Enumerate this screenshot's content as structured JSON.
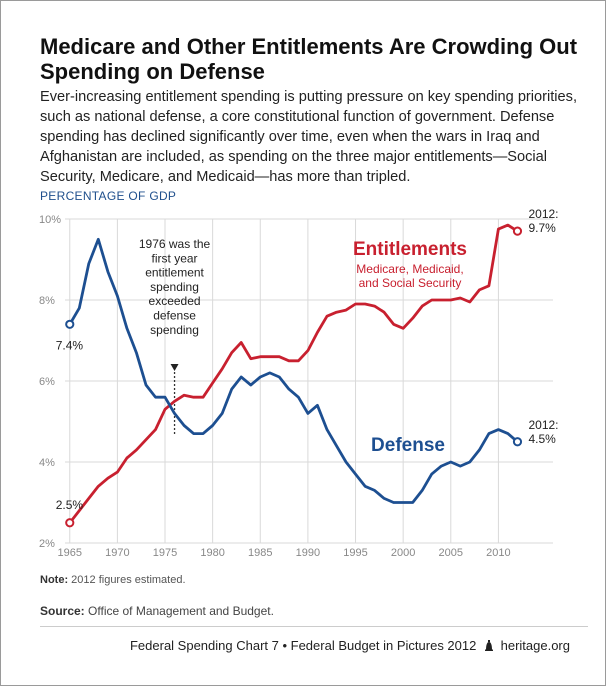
{
  "title": "Medicare and Other Entitlements Are Crowding Out Spending on Defense",
  "description": "Ever-increasing entitlement spending is putting pressure on key spending priorities, such as national defense, a core constitutional function of government. Defense spending has declined significantly over time, even when the wars in Iraq and Afghanistan are included, as spending on the three major entitlements—Social Security, Medicare, and Medicaid—has more than tripled.",
  "units_label": "PERCENTAGE OF GDP",
  "note": {
    "label": "Note:",
    "text": "2012 figures estimated."
  },
  "source": {
    "label": "Source:",
    "text": "Office of Management and Budget."
  },
  "footer": {
    "text": "Federal Spending Chart 7 • Federal Budget in Pictures 2012",
    "site": "heritage.org",
    "icon": "liberty-bell-icon"
  },
  "colors": {
    "entitlements": "#c8202f",
    "defense": "#1d4f91",
    "grid": "#d9d9d9",
    "tick_text": "#888888"
  },
  "chart_data": {
    "type": "line",
    "x_ticks": [
      1965,
      1970,
      1975,
      1980,
      1985,
      1990,
      1995,
      2000,
      2005,
      2010
    ],
    "y_ticks": [
      {
        "value": 2,
        "label": "2%"
      },
      {
        "value": 4,
        "label": "4%"
      },
      {
        "value": 6,
        "label": "6%"
      },
      {
        "value": 8,
        "label": "8%"
      },
      {
        "value": 10,
        "label": "10%"
      }
    ],
    "xlim": [
      1964.5,
      2013
    ],
    "ylim": [
      2,
      10
    ],
    "grid": true,
    "series": [
      {
        "name": "Entitlements",
        "subtitle": "Medicare, Medicaid, and Social Security",
        "color": "#c8202f",
        "x": [
          1965,
          1966,
          1967,
          1968,
          1969,
          1970,
          1971,
          1972,
          1973,
          1974,
          1975,
          1976,
          1977,
          1978,
          1979,
          1980,
          1981,
          1982,
          1983,
          1984,
          1985,
          1986,
          1987,
          1988,
          1989,
          1990,
          1991,
          1992,
          1993,
          1994,
          1995,
          1996,
          1997,
          1998,
          1999,
          2000,
          2001,
          2002,
          2003,
          2004,
          2005,
          2006,
          2007,
          2008,
          2009,
          2010,
          2011,
          2012
        ],
        "y": [
          2.5,
          2.8,
          3.1,
          3.4,
          3.6,
          3.75,
          4.1,
          4.3,
          4.55,
          4.8,
          5.3,
          5.5,
          5.65,
          5.6,
          5.6,
          5.95,
          6.3,
          6.7,
          6.95,
          6.55,
          6.6,
          6.6,
          6.6,
          6.5,
          6.5,
          6.75,
          7.2,
          7.6,
          7.7,
          7.75,
          7.9,
          7.9,
          7.85,
          7.7,
          7.4,
          7.3,
          7.55,
          7.85,
          8.0,
          8.0,
          8.0,
          8.05,
          7.95,
          8.25,
          8.35,
          9.75,
          9.85,
          9.7
        ]
      },
      {
        "name": "Defense",
        "color": "#1d4f91",
        "x": [
          1965,
          1966,
          1967,
          1968,
          1969,
          1970,
          1971,
          1972,
          1973,
          1974,
          1975,
          1976,
          1977,
          1978,
          1979,
          1980,
          1981,
          1982,
          1983,
          1984,
          1985,
          1986,
          1987,
          1988,
          1989,
          1990,
          1991,
          1992,
          1993,
          1994,
          1995,
          1996,
          1997,
          1998,
          1999,
          2000,
          2001,
          2002,
          2003,
          2004,
          2005,
          2006,
          2007,
          2008,
          2009,
          2010,
          2011,
          2012
        ],
        "y": [
          7.4,
          7.8,
          8.9,
          9.5,
          8.7,
          8.1,
          7.3,
          6.7,
          5.9,
          5.6,
          5.6,
          5.2,
          4.9,
          4.7,
          4.7,
          4.9,
          5.2,
          5.8,
          6.1,
          5.9,
          6.1,
          6.2,
          6.1,
          5.8,
          5.6,
          5.2,
          5.4,
          4.8,
          4.4,
          4.0,
          3.7,
          3.4,
          3.3,
          3.1,
          3.0,
          3.0,
          3.0,
          3.3,
          3.7,
          3.9,
          4.0,
          3.9,
          4.0,
          4.3,
          4.7,
          4.8,
          4.7,
          4.5
        ]
      }
    ],
    "endpoint_labels": {
      "entitlements_start": "2.5%",
      "entitlements_end": "2012:\n9.7%",
      "defense_start": "7.4%",
      "defense_end": "2012:\n4.5%"
    },
    "annotation": {
      "x": 1976,
      "text": "1976 was the first year entitlement spending exceeded defense spending",
      "lines": [
        "1976 was the",
        "first year",
        "entitlement",
        "spending",
        "exceeded",
        "defense",
        "spending"
      ]
    }
  }
}
